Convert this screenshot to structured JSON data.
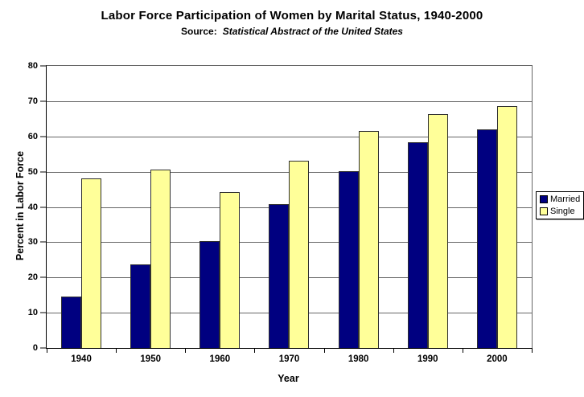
{
  "chart_data": {
    "type": "bar",
    "title": "Labor Force Participation of Women by Marital Status, 1940-2000",
    "source_label": "Source:",
    "source_text": "Statistical Abstract of the United States",
    "xlabel": "Year",
    "ylabel": "Percent in Labor Force",
    "ylim": [
      0,
      80
    ],
    "yticks": [
      0,
      10,
      20,
      30,
      40,
      50,
      60,
      70,
      80
    ],
    "categories": [
      "1940",
      "1950",
      "1960",
      "1970",
      "1980",
      "1990",
      "2000"
    ],
    "series": [
      {
        "name": "Married",
        "color": "#000080",
        "values": [
          14.7,
          23.8,
          30.4,
          40.8,
          50.1,
          58.4,
          61.9
        ]
      },
      {
        "name": "Single",
        "color": "#FFFF99",
        "values": [
          48.1,
          50.5,
          44.2,
          53.0,
          61.5,
          66.4,
          68.6
        ]
      }
    ],
    "grid": true,
    "legend_position": "right",
    "colors": {
      "background": "#FFFFFF",
      "text": "#000000",
      "axis": "#000000",
      "gridline": "#666666",
      "bar_border": "#2F2F2F"
    }
  }
}
